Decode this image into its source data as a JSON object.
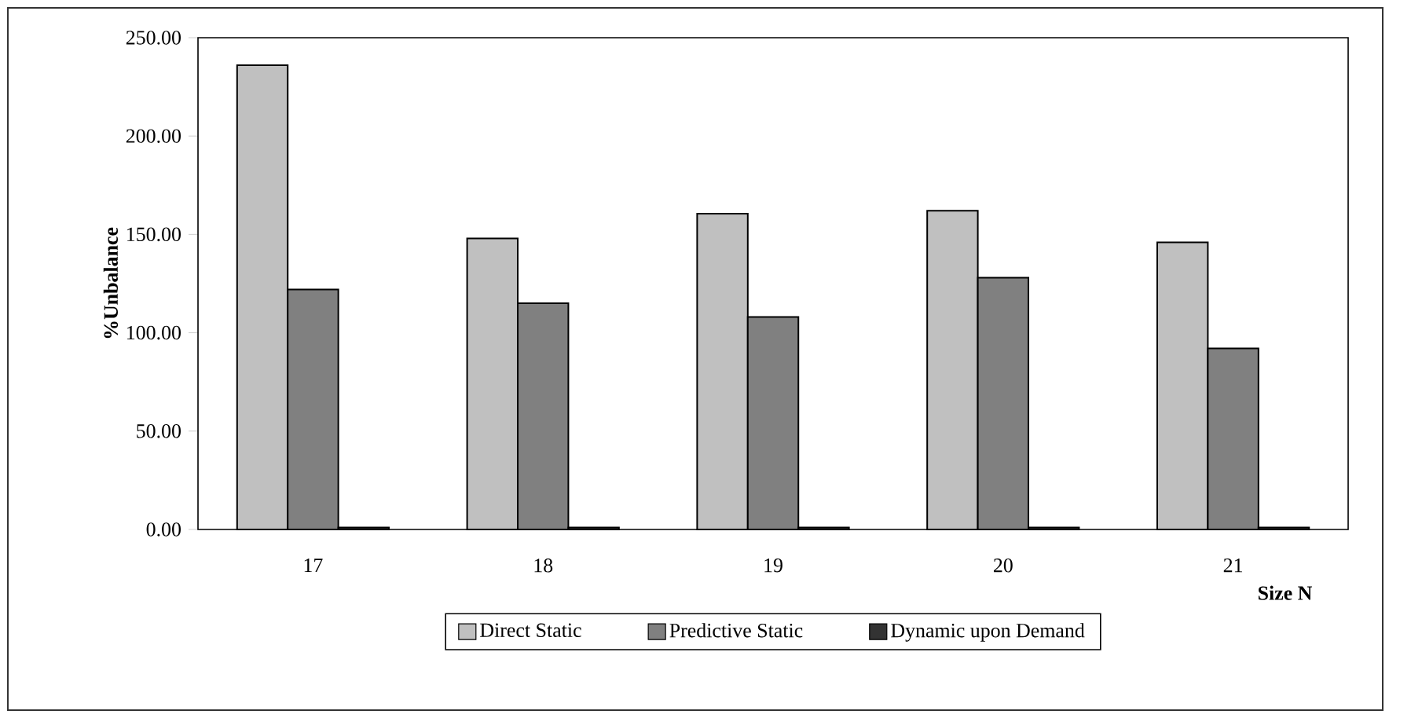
{
  "chart_data": {
    "type": "bar",
    "xlabel": "Size N",
    "ylabel": "%Unbalance",
    "categories": [
      "17",
      "18",
      "19",
      "20",
      "21"
    ],
    "series": [
      {
        "name": "Direct Static",
        "color": "#c0c0c0",
        "values": [
          236,
          148,
          160.5,
          162,
          146
        ]
      },
      {
        "name": "Predictive Static",
        "color": "#808080",
        "values": [
          122,
          115,
          108,
          128,
          92
        ]
      },
      {
        "name": "Dynamic upon Demand",
        "color": "#333333",
        "values": [
          1,
          1,
          1,
          1,
          1
        ]
      }
    ],
    "ylim": [
      0,
      250
    ],
    "yticks": [
      {
        "value": 0,
        "label": "0.00"
      },
      {
        "value": 50,
        "label": "50.00"
      },
      {
        "value": 100,
        "label": "100.00"
      },
      {
        "value": 150,
        "label": "150.00"
      },
      {
        "value": 200,
        "label": "200.00"
      },
      {
        "value": 250,
        "label": "250.00"
      }
    ],
    "legend": "bottom"
  }
}
